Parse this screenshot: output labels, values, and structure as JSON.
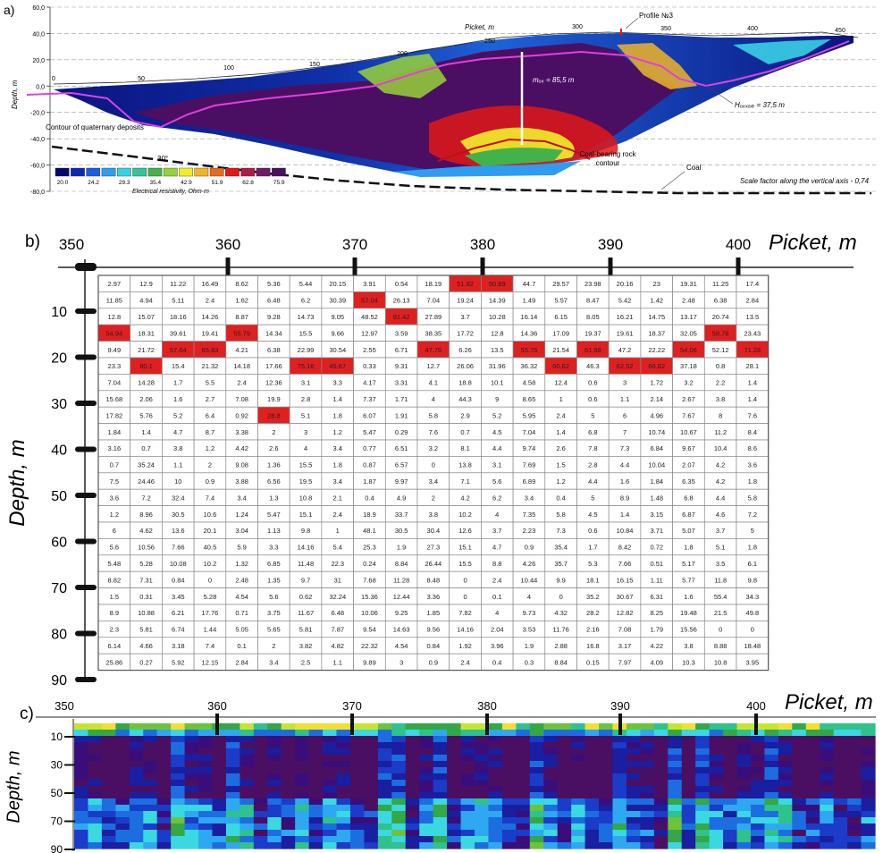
{
  "panel_a": {
    "label": "a)",
    "ylabel": "Depth, m",
    "yticks": [
      "60,0",
      "40,0",
      "20,0",
      "0,0",
      "-20,0",
      "-40,0",
      "-60,0",
      "-80,0"
    ],
    "picket_axis_label": "Picket, m",
    "picket_ticks": [
      "0",
      "50",
      "100",
      "150",
      "200",
      "250",
      "300",
      "350",
      "400",
      "450"
    ],
    "profile_label": "Profile №3",
    "m_label": "mₒₓ = 85,5 m",
    "h_label": "Hₒₓₓₐₗₑ = 37,5 m",
    "contour_quaternary": "Contour of quaternary deposits",
    "coal_rock_contour": "Coal-bearing rock contour",
    "coal_label": "Coal",
    "scale_factor": "Scale factor along the vertical axis - 0,74",
    "angle_label": "30°",
    "legend_ticks": [
      "20.0",
      "24.2",
      "29.3",
      "35.4",
      "42.9",
      "51.9",
      "62.8",
      "75.9"
    ],
    "legend_title": "Electrical resistivity, Ohm·m",
    "legend_colors": [
      "#000a6e",
      "#0a2ab4",
      "#1c5ee0",
      "#2e9cf0",
      "#38d0e6",
      "#35c39a",
      "#42b24a",
      "#98d23a",
      "#f0ee2a",
      "#f0b426",
      "#e86a1e",
      "#e01818",
      "#b01a4a",
      "#701a6a",
      "#4a0f62"
    ]
  },
  "panel_b": {
    "label": "b)",
    "picket_axis_label": "Picket, m",
    "picket_ticks": [
      "350",
      "360",
      "370",
      "380",
      "390",
      "400"
    ],
    "depth_axis_label": "Depth, m",
    "depth_ticks": [
      "10",
      "20",
      "30",
      "40",
      "50",
      "60",
      "70",
      "80",
      "90"
    ],
    "highlight_color": "#e02020",
    "table": [
      [
        "2.97",
        "12.9",
        "11.22",
        "16.49",
        "8.62",
        "5.36",
        "5.44",
        "20.15",
        "3.91",
        "0.54",
        "18.19",
        "51.82",
        "50.89",
        "44.7",
        "29.57",
        "23.98",
        "20.16",
        "23",
        "19.31",
        "11.25",
        "17.4"
      ],
      [
        "11.85",
        "4.94",
        "5.11",
        "2.4",
        "1.62",
        "6.48",
        "6.2",
        "30.39",
        "57.04",
        "26.13",
        "7.04",
        "19.24",
        "14.39",
        "1.49",
        "5.57",
        "8.47",
        "5.42",
        "1.42",
        "2.48",
        "6.38",
        "2.84"
      ],
      [
        "12.8",
        "15.07",
        "18.16",
        "14.26",
        "8.87",
        "9.28",
        "14.73",
        "9.05",
        "48.52",
        "81.42",
        "27.89",
        "3.7",
        "10.28",
        "16.14",
        "6.15",
        "8.05",
        "16.21",
        "14.75",
        "13.17",
        "20.74",
        "13.5"
      ],
      [
        "54.94",
        "18.31",
        "39.61",
        "19.41",
        "55.79",
        "14.34",
        "15.5",
        "9.66",
        "12.97",
        "3.59",
        "38.35",
        "17.72",
        "12.8",
        "14.36",
        "17.09",
        "19.37",
        "19.61",
        "18.37",
        "32.05",
        "58.78",
        "23.43"
      ],
      [
        "9.49",
        "21.72",
        "57.64",
        "65.83",
        "4.21",
        "6.38",
        "22.99",
        "30.54",
        "2.55",
        "6.71",
        "47.76",
        "6.26",
        "13.5",
        "55.76",
        "21.54",
        "61.98",
        "47.2",
        "22.22",
        "54.06",
        "52.12",
        "71.28"
      ],
      [
        "23.3",
        "80.1",
        "15.4",
        "21.32",
        "14.18",
        "17.66",
        "75.16",
        "45.67",
        "0.33",
        "9.31",
        "12.7",
        "26.06",
        "31.96",
        "36.32",
        "60.62",
        "46.3",
        "62.52",
        "66.82",
        "37.18",
        "0.8",
        "28.1"
      ],
      [
        "7.04",
        "14.28",
        "1.7",
        "5.5",
        "2.4",
        "12.36",
        "3.1",
        "3.3",
        "4.17",
        "3.31",
        "4.1",
        "18.8",
        "10.1",
        "4.58",
        "12.4",
        "0.6",
        "3",
        "1.72",
        "3.2",
        "2.2",
        "1.4"
      ],
      [
        "15.68",
        "2.06",
        "1.6",
        "2.7",
        "7.08",
        "19.9",
        "2.8",
        "1.4",
        "7.37",
        "1.71",
        "4",
        "44.3",
        "9",
        "8.65",
        "1",
        "0.6",
        "1.1",
        "2.14",
        "2.67",
        "3.8",
        "1.4"
      ],
      [
        "17.82",
        "5.76",
        "5.2",
        "6.4",
        "0.92",
        "28.8",
        "5.1",
        "1.8",
        "6.07",
        "1.91",
        "5.8",
        "2.9",
        "5.2",
        "5.95",
        "2.4",
        "5",
        "6",
        "4.96",
        "7.67",
        "8",
        "7.6"
      ],
      [
        "1.84",
        "1.4",
        "4.7",
        "8.7",
        "3.38",
        "2",
        "3",
        "1.2",
        "5.47",
        "0.29",
        "7.6",
        "0.7",
        "4.5",
        "7.04",
        "1.4",
        "6.8",
        "7",
        "10.74",
        "10.67",
        "11.2",
        "8.4"
      ],
      [
        "3.16",
        "0.7",
        "3.8",
        "1.2",
        "4.42",
        "2.6",
        "4",
        "3.4",
        "0.77",
        "6.51",
        "3.2",
        "8.1",
        "4.4",
        "9.74",
        "2.6",
        "7.8",
        "7.3",
        "6.84",
        "9.67",
        "10.4",
        "8.6"
      ],
      [
        "0.7",
        "35.24",
        "1.1",
        "2",
        "9.08",
        "1.36",
        "15.5",
        "1.8",
        "0.87",
        "6.57",
        "0",
        "13.8",
        "3.1",
        "7.69",
        "1.5",
        "2.8",
        "4.4",
        "10.04",
        "2.07",
        "4.2",
        "3.6"
      ],
      [
        "7.5",
        "24.46",
        "10",
        "0.9",
        "3.88",
        "6.56",
        "19.5",
        "3.4",
        "1.87",
        "9.97",
        "3.4",
        "7.1",
        "5.6",
        "6.89",
        "1.2",
        "4.4",
        "1.6",
        "1.84",
        "6.35",
        "4.2",
        "1.8"
      ],
      [
        "3.6",
        "7.2",
        "32.4",
        "7.4",
        "3.4",
        "1.3",
        "10.8",
        "2.1",
        "0.4",
        "4.9",
        "2",
        "4.2",
        "6.2",
        "3.4",
        "0.4",
        "5",
        "8.9",
        "1.48",
        "6.8",
        "4.4",
        "5.8"
      ],
      [
        "1.2",
        "8.96",
        "30.5",
        "10.6",
        "1.24",
        "5.47",
        "15.1",
        "2.4",
        "18.9",
        "33.7",
        "3.8",
        "10.2",
        "4",
        "7.35",
        "5.8",
        "4.5",
        "1.4",
        "3.15",
        "6.87",
        "4.6",
        "7.2"
      ],
      [
        "6",
        "4.62",
        "13.6",
        "20.1",
        "3.04",
        "1.13",
        "9.8",
        "1",
        "48.1",
        "30.5",
        "30.4",
        "12.6",
        "3.7",
        "2.23",
        "7.3",
        "0.6",
        "10.84",
        "3.71",
        "5.07",
        "3.7",
        "5"
      ],
      [
        "5.6",
        "10.56",
        "7.66",
        "40.5",
        "5.9",
        "3.3",
        "14.16",
        "5.4",
        "25.3",
        "1.9",
        "27.3",
        "15.1",
        "4.7",
        "0.9",
        "35.4",
        "1.7",
        "8.42",
        "0.72",
        "1.8",
        "5.1",
        "1.8"
      ],
      [
        "5.48",
        "5.28",
        "10.08",
        "10.2",
        "1.32",
        "6.85",
        "11.48",
        "22.3",
        "0.24",
        "8.84",
        "26.44",
        "15.5",
        "8.8",
        "4.26",
        "35.7",
        "5.3",
        "7.66",
        "0.51",
        "5.17",
        "3.5",
        "6.1"
      ],
      [
        "8.82",
        "7.31",
        "0.84",
        "0",
        "2.48",
        "1.35",
        "9.7",
        "31",
        "7.68",
        "11.28",
        "8.48",
        "0",
        "2.4",
        "10.44",
        "9.9",
        "18.1",
        "16.15",
        "1.11",
        "5.77",
        "11.8",
        "9.8"
      ],
      [
        "1.5",
        "0.31",
        "3.45",
        "5.28",
        "4.54",
        "5.6",
        "0.62",
        "32.24",
        "15.36",
        "12.44",
        "3.36",
        "0",
        "0.1",
        "4",
        "0",
        "35.2",
        "30.67",
        "6.31",
        "1.6",
        "55.4",
        "34.3"
      ],
      [
        "8.9",
        "10.88",
        "6.21",
        "17.76",
        "0.71",
        "3.75",
        "11.67",
        "6.48",
        "10.06",
        "9.25",
        "1.85",
        "7.82",
        "4",
        "9.73",
        "4.32",
        "28.2",
        "12.82",
        "8.25",
        "19.48",
        "21.5",
        "49.8"
      ],
      [
        "2.3",
        "5.81",
        "6.74",
        "1.44",
        "5.05",
        "5.65",
        "5.81",
        "7.87",
        "9.54",
        "14.63",
        "9.56",
        "14.16",
        "2.04",
        "3.53",
        "11.76",
        "2.16",
        "7.08",
        "1.79",
        "15.56",
        "0",
        "0"
      ],
      [
        "6.14",
        "4.66",
        "3.18",
        "7.4",
        "0.1",
        "2",
        "3.82",
        "4.82",
        "22.32",
        "4.54",
        "0.84",
        "1.92",
        "3.96",
        "1.9",
        "2.88",
        "16.8",
        "3.17",
        "4.22",
        "3.8",
        "8.88",
        "18.48"
      ],
      [
        "25.86",
        "0.27",
        "5.92",
        "12.15",
        "2.84",
        "3.4",
        "2.5",
        "1.1",
        "9.89",
        "3",
        "0.9",
        "2.4",
        "0.4",
        "0.3",
        "8.84",
        "0.15",
        "7.97",
        "4.09",
        "10.3",
        "10.8",
        "3.95"
      ]
    ],
    "highlighted_cells": [
      [
        0,
        11
      ],
      [
        0,
        12
      ],
      [
        1,
        8
      ],
      [
        2,
        9
      ],
      [
        3,
        0
      ],
      [
        3,
        4
      ],
      [
        3,
        19
      ],
      [
        4,
        2
      ],
      [
        4,
        3
      ],
      [
        4,
        10
      ],
      [
        4,
        13
      ],
      [
        4,
        15
      ],
      [
        4,
        18
      ],
      [
        4,
        20
      ],
      [
        5,
        1
      ],
      [
        5,
        6
      ],
      [
        5,
        7
      ],
      [
        5,
        14
      ],
      [
        5,
        16
      ],
      [
        5,
        17
      ],
      [
        8,
        5
      ]
    ]
  },
  "panel_c": {
    "label": "c)",
    "picket_axis_label": "Picket, m",
    "picket_ticks": [
      "350",
      "360",
      "370",
      "380",
      "390",
      "400"
    ],
    "depth_axis_label": "Depth, m",
    "depth_ticks": [
      "10",
      "30",
      "50",
      "70",
      "90"
    ],
    "palette": [
      "#4a0f62",
      "#3a0e7a",
      "#1a1ea0",
      "#1a3cc8",
      "#1c6ee0",
      "#2ea8f0",
      "#3ad8e0",
      "#2ec28c",
      "#34a844",
      "#6cc43a",
      "#c8e430",
      "#f0e030"
    ]
  },
  "chart_data": [
    {
      "type": "heatmap",
      "title": "",
      "xlabel": "Picket, m",
      "ylabel": "Depth, m",
      "xlim": [
        0,
        470
      ],
      "ylim": [
        -80,
        60
      ],
      "legend": [
        "20.0",
        "24.2",
        "29.3",
        "35.4",
        "42.9",
        "51.9",
        "62.8",
        "75.9"
      ],
      "legend_title": "Electrical resistivity, Ohm·m"
    },
    {
      "type": "table",
      "title": "",
      "xlabel": "Picket, m",
      "ylabel": "Depth, m",
      "columns": 21,
      "rows": 24
    },
    {
      "type": "heatmap",
      "title": "",
      "xlabel": "Picket, m",
      "ylabel": "Depth, m",
      "xlim": [
        350,
        410
      ],
      "ylim": [
        90,
        0
      ]
    }
  ]
}
